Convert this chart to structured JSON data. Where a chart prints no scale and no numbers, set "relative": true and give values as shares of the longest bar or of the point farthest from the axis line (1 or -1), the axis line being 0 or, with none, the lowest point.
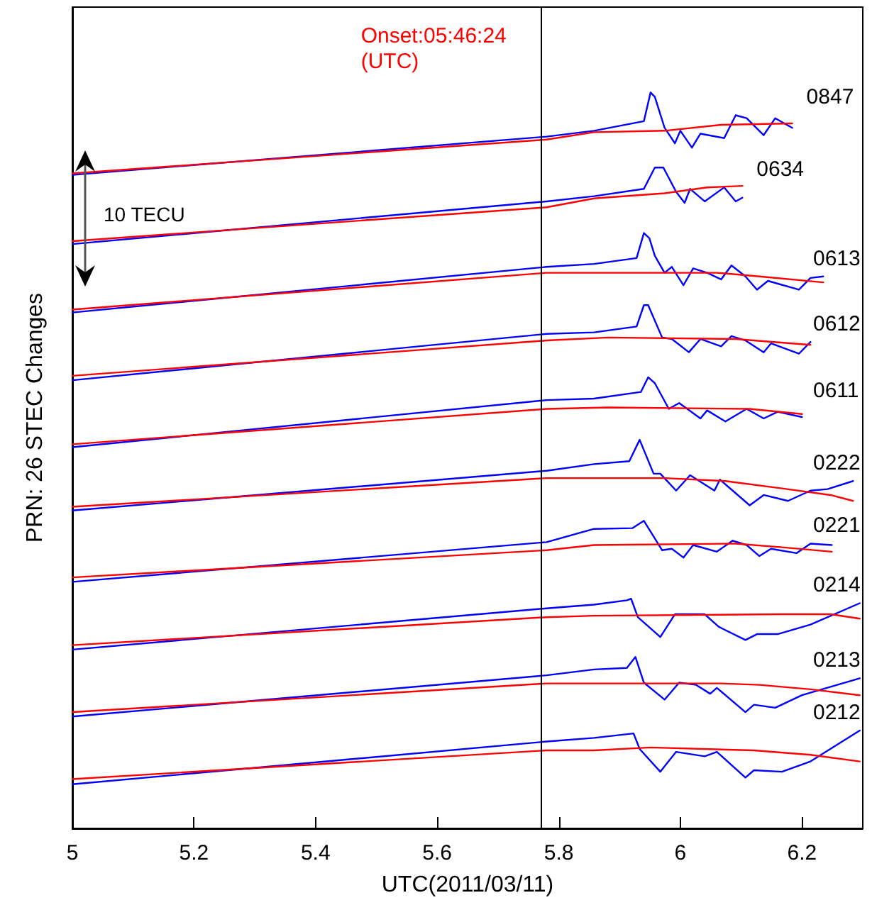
{
  "chart_data": {
    "type": "line",
    "relative": true,
    "xlabel": "UTC(2011/03/11)",
    "ylabel": "PRN: 26 STEC Changes",
    "xlim": [
      5,
      6.3
    ],
    "xticks": [
      5,
      5.2,
      5.4,
      5.6,
      5.8,
      6,
      6.2
    ],
    "legend": false,
    "marker": "none",
    "line_style": "solid",
    "annotations": [
      "10 TECU",
      "Onset:05:46:24\n(UTC)"
    ],
    "ref_lines": [
      {
        "axis": "x",
        "value": 5.773333,
        "color": "#000000"
      }
    ],
    "series": [
      {
        "name": "0847",
        "color": "#0000ff",
        "x": [
          5.0,
          5.78,
          5.858,
          5.94,
          5.951,
          5.958,
          5.974,
          5.991,
          6.0,
          6.019,
          6.033,
          6.072,
          6.091,
          6.109,
          6.137,
          6.156,
          6.184
        ],
        "values": [
          0.888,
          0.94,
          0.948,
          0.961,
          1.0,
          0.994,
          0.952,
          0.931,
          0.948,
          0.925,
          0.944,
          0.938,
          0.969,
          0.965,
          0.942,
          0.965,
          0.952
        ]
      },
      {
        "color": "#ff0000",
        "x": [
          5.0,
          5.78,
          5.858,
          5.974,
          6.067,
          6.184
        ],
        "values": [
          0.89,
          0.936,
          0.946,
          0.948,
          0.956,
          0.958
        ]
      },
      {
        "name": "0634",
        "color": "#0000ff",
        "x": [
          5.0,
          5.78,
          5.858,
          5.94,
          5.958,
          5.972,
          5.993,
          6.007,
          6.016,
          6.04,
          6.072,
          6.091,
          6.102
        ],
        "values": [
          0.794,
          0.852,
          0.859,
          0.869,
          0.898,
          0.898,
          0.865,
          0.85,
          0.869,
          0.852,
          0.871,
          0.852,
          0.857
        ]
      },
      {
        "color": "#ff0000",
        "x": [
          5.0,
          5.78,
          5.858,
          5.974,
          6.044,
          6.102
        ],
        "values": [
          0.798,
          0.844,
          0.856,
          0.863,
          0.871,
          0.873
        ]
      },
      {
        "name": "0613",
        "color": "#0000ff",
        "x": [
          5.0,
          5.78,
          5.858,
          5.928,
          5.94,
          5.949,
          5.958,
          5.974,
          5.986,
          6.005,
          6.021,
          6.044,
          6.067,
          6.084,
          6.107,
          6.126,
          6.144,
          6.195,
          6.214,
          6.235
        ],
        "values": [
          0.701,
          0.763,
          0.767,
          0.775,
          0.809,
          0.802,
          0.778,
          0.755,
          0.763,
          0.738,
          0.761,
          0.755,
          0.746,
          0.765,
          0.75,
          0.732,
          0.744,
          0.732,
          0.748,
          0.75
        ]
      },
      {
        "color": "#ff0000",
        "x": [
          5.0,
          5.78,
          5.858,
          6.06,
          6.13,
          6.235
        ],
        "values": [
          0.705,
          0.755,
          0.755,
          0.755,
          0.75,
          0.742
        ]
      },
      {
        "name": "0612",
        "color": "#0000ff",
        "x": [
          5.0,
          5.78,
          5.858,
          5.928,
          5.94,
          5.947,
          5.97,
          5.986,
          6.014,
          6.033,
          6.067,
          6.084,
          6.107,
          6.137,
          6.149,
          6.195,
          6.214
        ],
        "values": [
          0.609,
          0.672,
          0.674,
          0.682,
          0.711,
          0.711,
          0.667,
          0.665,
          0.647,
          0.665,
          0.655,
          0.669,
          0.663,
          0.647,
          0.659,
          0.645,
          0.661
        ]
      },
      {
        "color": "#ff0000",
        "x": [
          5.0,
          5.78,
          5.881,
          6.091,
          6.214
        ],
        "values": [
          0.615,
          0.663,
          0.667,
          0.665,
          0.657
        ]
      },
      {
        "name": "0611",
        "color": "#0000ff",
        "x": [
          5.0,
          5.78,
          5.858,
          5.935,
          5.947,
          5.958,
          5.981,
          5.998,
          6.033,
          6.044,
          6.074,
          6.109,
          6.137,
          6.16,
          6.2
        ],
        "values": [
          0.518,
          0.582,
          0.584,
          0.593,
          0.613,
          0.605,
          0.57,
          0.578,
          0.557,
          0.568,
          0.553,
          0.57,
          0.557,
          0.566,
          0.559
        ]
      },
      {
        "color": "#ff0000",
        "x": [
          5.0,
          5.78,
          5.881,
          6.114,
          6.2
        ],
        "values": [
          0.522,
          0.57,
          0.572,
          0.57,
          0.563
        ]
      },
      {
        "name": "0222",
        "color": "#0000ff",
        "x": [
          5.0,
          5.78,
          5.858,
          5.916,
          5.933,
          5.956,
          5.967,
          5.993,
          6.016,
          6.056,
          6.065,
          6.114,
          6.137,
          6.177,
          6.214,
          6.242,
          6.284
        ],
        "values": [
          0.432,
          0.486,
          0.495,
          0.499,
          0.528,
          0.482,
          0.482,
          0.459,
          0.48,
          0.459,
          0.474,
          0.439,
          0.453,
          0.445,
          0.459,
          0.461,
          0.472
        ]
      },
      {
        "color": "#ff0000",
        "x": [
          5.0,
          5.78,
          5.974,
          6.074,
          6.167,
          6.247,
          6.284
        ],
        "values": [
          0.437,
          0.476,
          0.476,
          0.472,
          0.462,
          0.453,
          0.445
        ]
      },
      {
        "name": "0221",
        "color": "#0000ff",
        "x": [
          5.0,
          5.78,
          5.858,
          5.921,
          5.94,
          5.97,
          5.986,
          6.005,
          6.021,
          6.06,
          6.086,
          6.109,
          6.13,
          6.149,
          6.191,
          6.214,
          6.249
        ],
        "values": [
          0.335,
          0.389,
          0.407,
          0.408,
          0.418,
          0.378,
          0.38,
          0.368,
          0.385,
          0.376,
          0.391,
          0.385,
          0.37,
          0.38,
          0.374,
          0.387,
          0.385
        ]
      },
      {
        "color": "#ff0000",
        "x": [
          5.0,
          5.78,
          5.858,
          6.091,
          6.167,
          6.249
        ],
        "values": [
          0.341,
          0.378,
          0.385,
          0.387,
          0.382,
          0.376
        ]
      },
      {
        "name": "0214",
        "color": "#0000ff",
        "x": [
          5.0,
          5.78,
          5.858,
          5.912,
          5.919,
          5.93,
          5.967,
          5.991,
          6.04,
          6.063,
          6.107,
          6.126,
          6.16,
          6.214,
          6.295
        ],
        "values": [
          0.243,
          0.299,
          0.304,
          0.31,
          0.312,
          0.287,
          0.26,
          0.291,
          0.291,
          0.274,
          0.256,
          0.264,
          0.264,
          0.277,
          0.306
        ]
      },
      {
        "color": "#ff0000",
        "x": [
          5.0,
          5.78,
          5.858,
          6.167,
          6.247,
          6.295
        ],
        "values": [
          0.249,
          0.287,
          0.289,
          0.291,
          0.291,
          0.285
        ]
      },
      {
        "name": "0213",
        "color": "#0000ff",
        "x": [
          5.0,
          5.78,
          5.858,
          5.912,
          5.926,
          5.94,
          5.974,
          5.998,
          6.026,
          6.049,
          6.06,
          6.107,
          6.121,
          6.156,
          6.2,
          6.295
        ],
        "values": [
          0.152,
          0.208,
          0.216,
          0.218,
          0.233,
          0.198,
          0.175,
          0.198,
          0.195,
          0.183,
          0.191,
          0.158,
          0.168,
          0.164,
          0.181,
          0.204
        ]
      },
      {
        "color": "#ff0000",
        "x": [
          5.0,
          5.78,
          5.858,
          6.067,
          6.13,
          6.214,
          6.295
        ],
        "values": [
          0.158,
          0.197,
          0.197,
          0.197,
          0.195,
          0.189,
          0.181
        ]
      },
      {
        "name": "0212",
        "color": "#0000ff",
        "x": [
          5.0,
          5.78,
          5.858,
          5.923,
          5.933,
          5.967,
          5.993,
          6.04,
          6.06,
          6.107,
          6.121,
          6.167,
          6.214,
          6.295
        ],
        "values": [
          0.06,
          0.118,
          0.123,
          0.129,
          0.108,
          0.077,
          0.104,
          0.098,
          0.104,
          0.069,
          0.079,
          0.077,
          0.091,
          0.133
        ]
      },
      {
        "color": "#ff0000",
        "x": [
          5.0,
          5.78,
          5.858,
          5.951,
          6.121,
          6.214,
          6.295
        ],
        "values": [
          0.067,
          0.106,
          0.106,
          0.11,
          0.106,
          0.1,
          0.091
        ]
      }
    ]
  }
}
